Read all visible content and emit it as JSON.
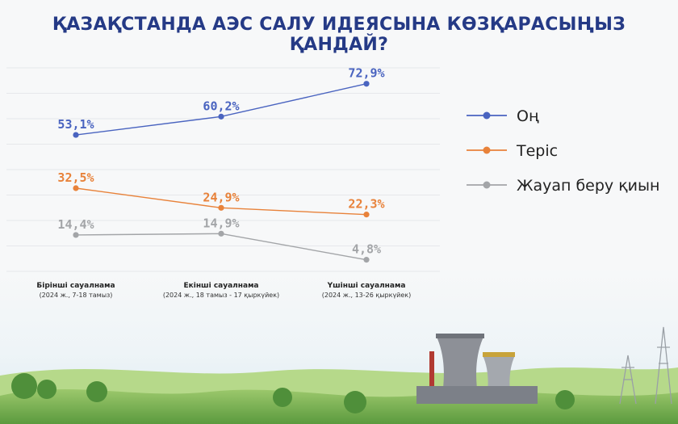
{
  "chart_data": {
    "type": "line",
    "title": "ҚАЗАҚСТАНДА АЭС САЛУ ИДЕЯСЫНА КӨЗҚАРАСЫҢЫЗ ҚАНДАЙ?",
    "categories": [
      {
        "label": "Бірінші сауалнама",
        "sub": "(2024 ж., 7-18 тамыз)"
      },
      {
        "label": "Екінші сауалнама",
        "sub": "(2024 ж., 18 тамыз - 17 қыркүйек)"
      },
      {
        "label": "Үшінші сауалнама",
        "sub": "(2024 ж., 13-26 қыркүйек)"
      }
    ],
    "series": [
      {
        "name": "Оң",
        "values": [
          53.1,
          60.2,
          72.9
        ],
        "labels": [
          "53,1%",
          "60,2%",
          "72,9%"
        ],
        "color": "#4a64c0"
      },
      {
        "name": "Теріс",
        "values": [
          32.5,
          24.9,
          22.3
        ],
        "labels": [
          "32,5%",
          "24,9%",
          "22,3%"
        ],
        "color": "#e8823a"
      },
      {
        "name": "Жауап беру қиын",
        "values": [
          14.4,
          14.9,
          4.8
        ],
        "labels": [
          "14,4%",
          "14,9%",
          "4,8%"
        ],
        "color": "#a3a5a8"
      }
    ],
    "grid": true,
    "legend_position": "right"
  }
}
